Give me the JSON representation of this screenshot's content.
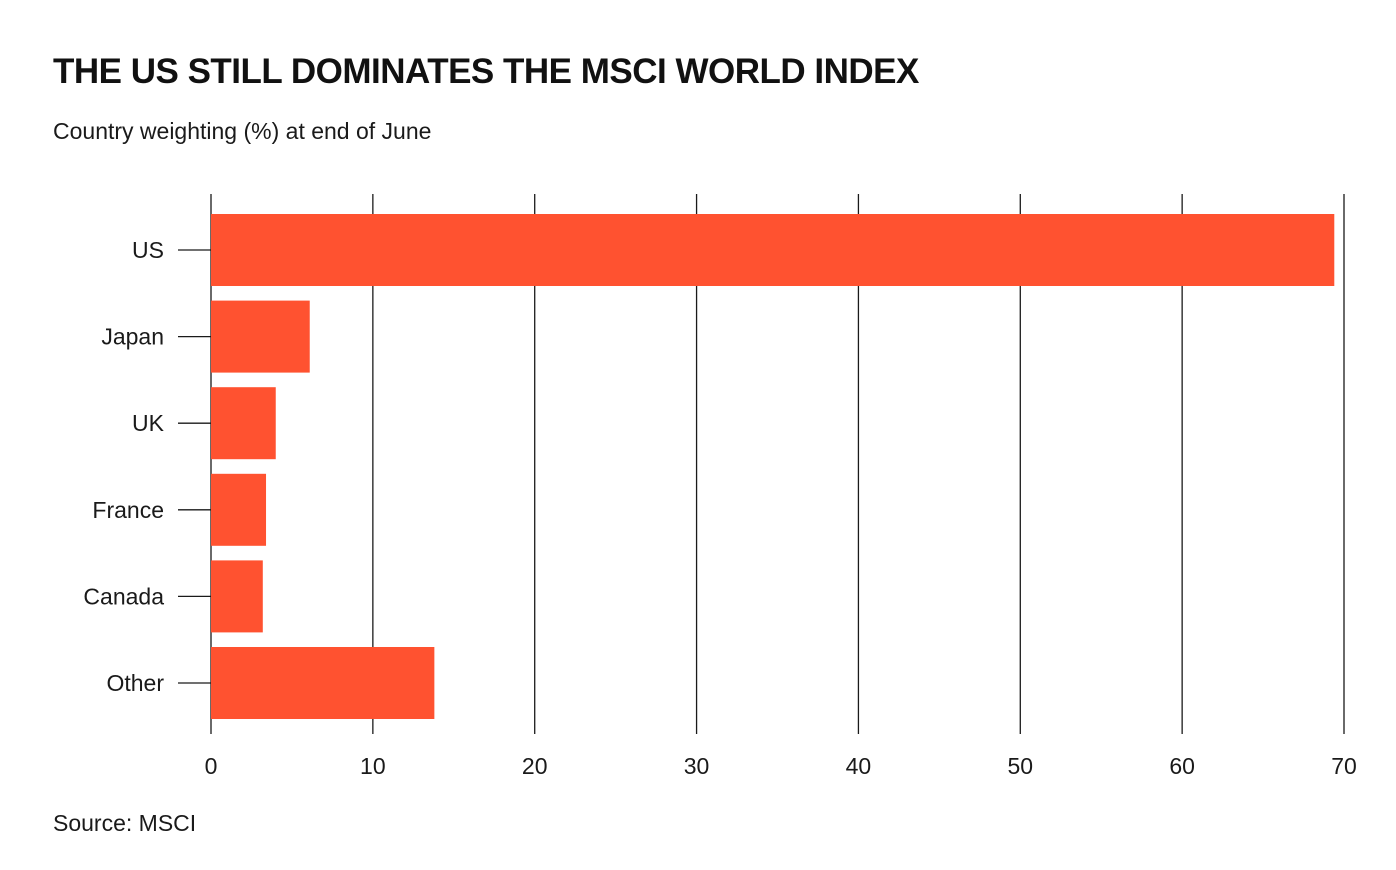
{
  "chart_data": {
    "type": "bar",
    "orientation": "horizontal",
    "title": "THE US STILL DOMINATES THE MSCI WORLD INDEX",
    "subtitle": "Country weighting (%) at end of June",
    "source": "Source: MSCI",
    "categories": [
      "US",
      "Japan",
      "UK",
      "France",
      "Canada",
      "Other"
    ],
    "values": [
      69.4,
      6.1,
      4.0,
      3.4,
      3.2,
      13.8
    ],
    "xlim": [
      0,
      70
    ],
    "xticks": [
      0,
      10,
      20,
      30,
      40,
      50,
      60,
      70
    ],
    "grid": true,
    "bar_color": "#ff5230"
  }
}
